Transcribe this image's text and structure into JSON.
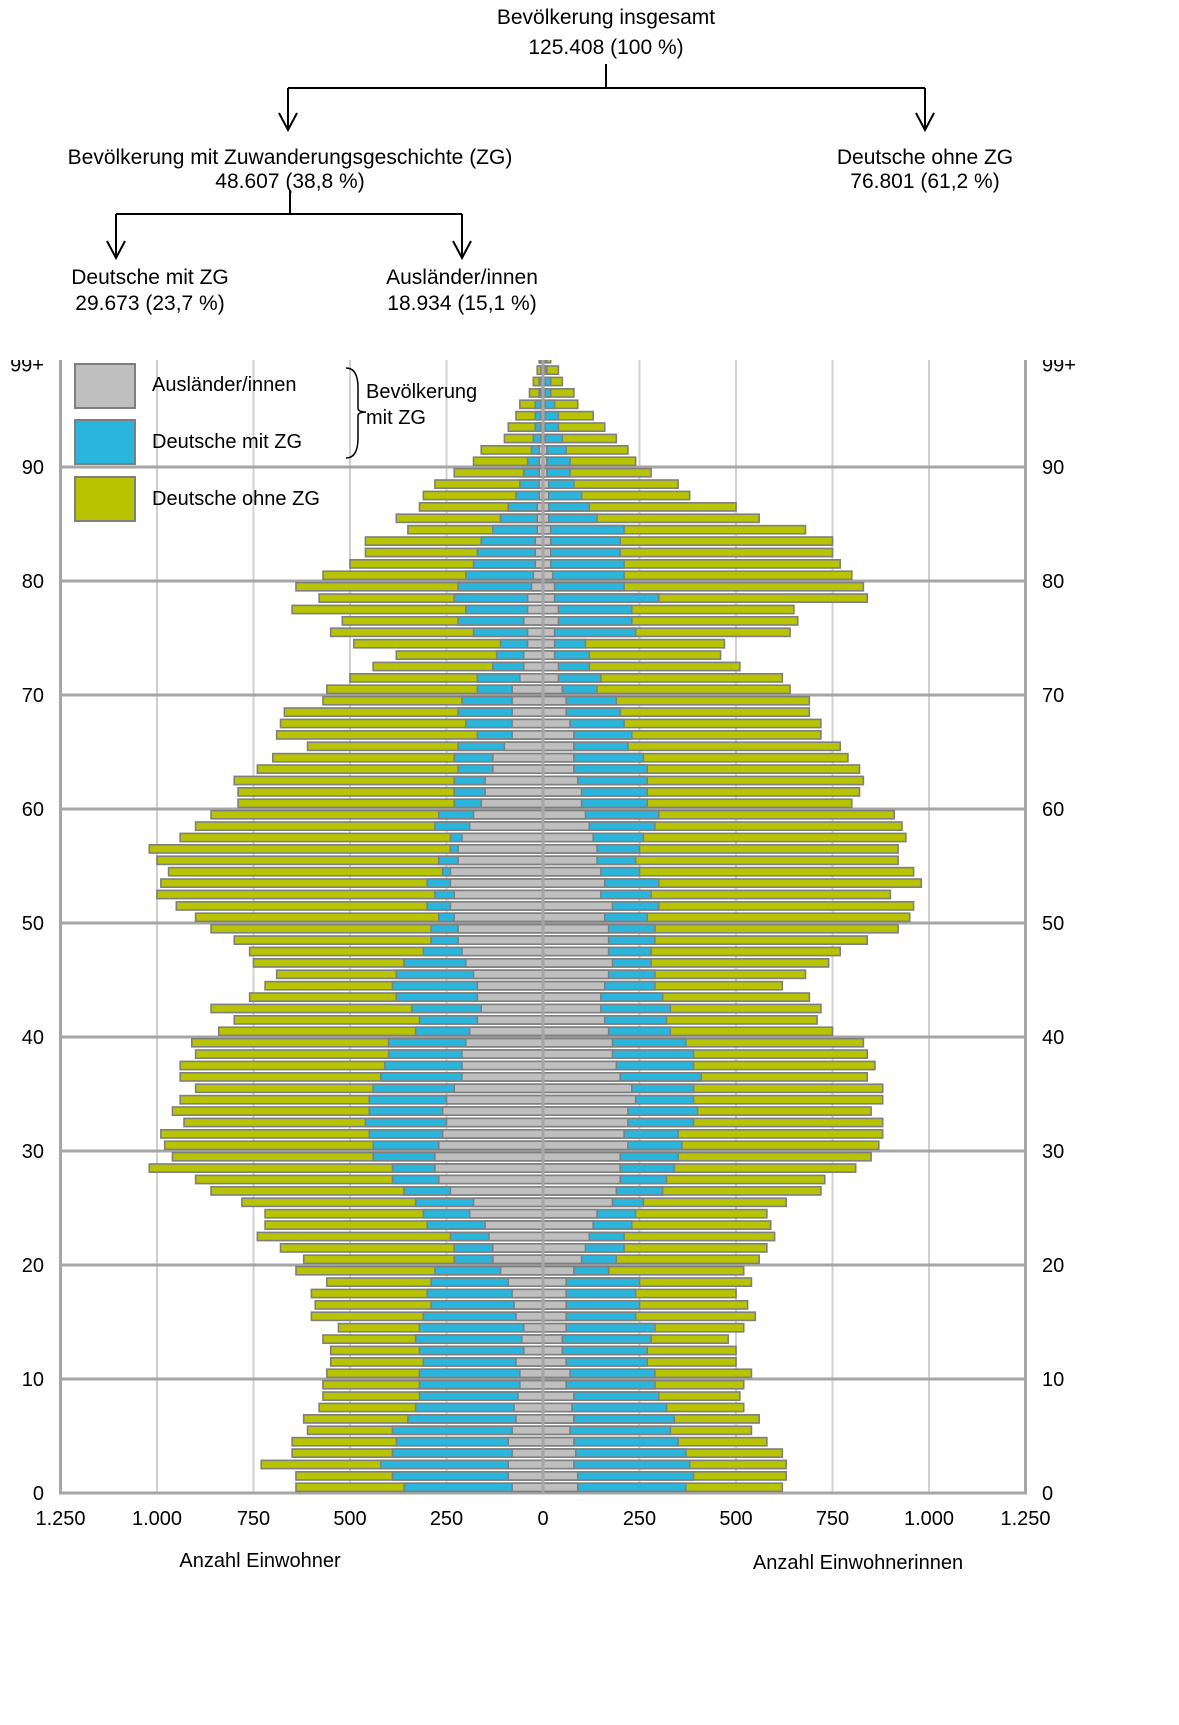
{
  "tree": {
    "total": {
      "label": "Bevölkerung insgesamt",
      "value": "125.408   (100 %)"
    },
    "with_zg": {
      "label": "Bevölkerung mit Zuwanderungsgeschichte (ZG)",
      "value": "48.607   (38,8   %)"
    },
    "without_zg": {
      "label": "Deutsche ohne ZG",
      "value": "76.801   (61,2 %)"
    },
    "german_zg": {
      "label": "Deutsche mit ZG",
      "value": "29.673   (23,7 %)"
    },
    "foreign": {
      "label": "Ausländer/innen",
      "value": "18.934   (15,1  %)"
    }
  },
  "legend": {
    "items": [
      {
        "label": "Ausländer/innen",
        "color": "#bfbfbf"
      },
      {
        "label": "Deutsche mit ZG",
        "color": "#29b5dc"
      },
      {
        "label": "Deutsche ohne ZG",
        "color": "#b8c400"
      }
    ],
    "brace_label_line1": "Bevölkerung",
    "brace_label_line2": "mit ZG"
  },
  "chart_data": {
    "type": "bar",
    "orientation": "horizontal-population-pyramid",
    "y_axis_labels": [
      "0",
      "10",
      "20",
      "30",
      "40",
      "50",
      "60",
      "70",
      "80",
      "90",
      "99+"
    ],
    "y_ticks": [
      0,
      10,
      20,
      30,
      40,
      50,
      60,
      70,
      80,
      90,
      99
    ],
    "x_tick_labels": [
      "1.250",
      "1.000",
      "750",
      "500",
      "250",
      "0",
      "250",
      "500",
      "750",
      "1.000",
      "1.250"
    ],
    "x_ticks": [
      -1250,
      -1000,
      -750,
      -500,
      -250,
      0,
      250,
      500,
      750,
      1000,
      1250
    ],
    "xlim": [
      -1250,
      1250
    ],
    "ylim": [
      0,
      100
    ],
    "xlabel_left": "Anzahl Einwohner",
    "xlabel_right": "Anzahl Einwohnerinnen",
    "series": [
      {
        "name": "Ausländer/innen",
        "side": "both"
      },
      {
        "name": "Deutsche mit ZG",
        "side": "both"
      },
      {
        "name": "Deutsche ohne ZG",
        "side": "both"
      }
    ],
    "ages": [
      0,
      1,
      2,
      3,
      4,
      5,
      6,
      7,
      8,
      9,
      10,
      11,
      12,
      13,
      14,
      15,
      16,
      17,
      18,
      19,
      20,
      21,
      22,
      23,
      24,
      25,
      26,
      27,
      28,
      29,
      30,
      31,
      32,
      33,
      34,
      35,
      36,
      37,
      38,
      39,
      40,
      41,
      42,
      43,
      44,
      45,
      46,
      47,
      48,
      49,
      50,
      51,
      52,
      53,
      54,
      55,
      56,
      57,
      58,
      59,
      60,
      61,
      62,
      63,
      64,
      65,
      66,
      67,
      68,
      69,
      70,
      71,
      72,
      73,
      74,
      75,
      76,
      77,
      78,
      79,
      80,
      81,
      82,
      83,
      84,
      85,
      86,
      87,
      88,
      89,
      90,
      91,
      92,
      93,
      94,
      95,
      96,
      97,
      98,
      99
    ],
    "male": {
      "total": [
        640,
        640,
        730,
        650,
        650,
        610,
        620,
        580,
        570,
        570,
        560,
        550,
        550,
        570,
        530,
        600,
        590,
        600,
        560,
        640,
        620,
        680,
        740,
        720,
        720,
        780,
        860,
        900,
        1020,
        960,
        980,
        990,
        930,
        960,
        940,
        900,
        940,
        940,
        900,
        910,
        840,
        800,
        860,
        760,
        720,
        690,
        750,
        760,
        800,
        860,
        900,
        950,
        1000,
        990,
        970,
        1000,
        1020,
        940,
        900,
        860,
        790,
        790,
        800,
        740,
        700,
        610,
        690,
        680,
        670,
        570,
        560,
        500,
        440,
        380,
        490,
        550,
        520,
        650,
        580,
        640,
        570,
        500,
        460,
        460,
        350,
        380,
        320,
        310,
        280,
        230,
        180,
        160,
        100,
        90,
        70,
        60,
        35,
        25,
        15,
        10
      ],
      "zg": [
        360,
        390,
        420,
        390,
        380,
        390,
        350,
        330,
        320,
        320,
        320,
        310,
        320,
        330,
        320,
        310,
        290,
        300,
        290,
        280,
        230,
        230,
        240,
        300,
        310,
        330,
        360,
        390,
        390,
        440,
        440,
        450,
        460,
        450,
        450,
        440,
        420,
        410,
        400,
        400,
        330,
        320,
        340,
        380,
        390,
        380,
        360,
        310,
        290,
        290,
        270,
        300,
        280,
        300,
        260,
        270,
        240,
        240,
        280,
        270,
        230,
        230,
        230,
        220,
        230,
        220,
        170,
        200,
        220,
        210,
        170,
        170,
        130,
        120,
        110,
        180,
        220,
        200,
        230,
        220,
        200,
        180,
        170,
        160,
        130,
        110,
        90,
        70,
        60,
        50,
        40,
        30,
        25,
        20,
        20,
        20,
        10,
        10,
        5,
        5
      ],
      "foreign": [
        80,
        90,
        90,
        80,
        90,
        80,
        70,
        75,
        65,
        60,
        60,
        70,
        50,
        55,
        50,
        70,
        75,
        80,
        90,
        110,
        130,
        130,
        140,
        150,
        190,
        180,
        240,
        270,
        280,
        280,
        270,
        260,
        250,
        260,
        250,
        230,
        210,
        210,
        210,
        200,
        190,
        170,
        160,
        170,
        170,
        180,
        200,
        210,
        220,
        220,
        230,
        240,
        230,
        240,
        240,
        220,
        220,
        210,
        190,
        180,
        160,
        150,
        150,
        130,
        130,
        100,
        80,
        80,
        80,
        80,
        80,
        60,
        50,
        50,
        40,
        40,
        50,
        40,
        40,
        30,
        25,
        20,
        20,
        20,
        15,
        15,
        15,
        10,
        10,
        10,
        10,
        10,
        5,
        5,
        5,
        5,
        5,
        5,
        5,
        5
      ]
    },
    "female": {
      "total": [
        620,
        630,
        630,
        620,
        580,
        540,
        560,
        520,
        510,
        520,
        540,
        500,
        500,
        480,
        520,
        550,
        530,
        500,
        540,
        520,
        560,
        580,
        600,
        590,
        580,
        630,
        720,
        730,
        810,
        850,
        870,
        880,
        880,
        850,
        880,
        880,
        840,
        860,
        840,
        830,
        750,
        710,
        720,
        690,
        620,
        680,
        740,
        770,
        840,
        920,
        950,
        960,
        900,
        980,
        960,
        920,
        920,
        940,
        930,
        910,
        800,
        820,
        830,
        820,
        790,
        770,
        720,
        720,
        690,
        690,
        640,
        620,
        510,
        460,
        470,
        640,
        660,
        650,
        840,
        830,
        800,
        770,
        750,
        750,
        680,
        560,
        500,
        380,
        350,
        280,
        240,
        220,
        190,
        160,
        130,
        90,
        80,
        50,
        40,
        20
      ],
      "zg": [
        370,
        390,
        380,
        370,
        350,
        330,
        340,
        320,
        300,
        290,
        290,
        270,
        270,
        280,
        290,
        240,
        250,
        240,
        250,
        170,
        190,
        210,
        210,
        230,
        240,
        260,
        310,
        320,
        340,
        350,
        360,
        350,
        390,
        400,
        390,
        390,
        410,
        390,
        390,
        370,
        330,
        320,
        330,
        310,
        290,
        290,
        280,
        280,
        290,
        290,
        270,
        300,
        280,
        300,
        250,
        240,
        250,
        260,
        290,
        300,
        270,
        270,
        270,
        270,
        260,
        220,
        230,
        210,
        200,
        190,
        140,
        150,
        120,
        120,
        110,
        240,
        230,
        230,
        300,
        210,
        210,
        210,
        200,
        200,
        210,
        140,
        120,
        100,
        80,
        70,
        70,
        60,
        50,
        40,
        40,
        30,
        20,
        20,
        10,
        10
      ],
      "foreign": [
        90,
        90,
        80,
        85,
        80,
        70,
        80,
        75,
        80,
        60,
        70,
        60,
        50,
        50,
        60,
        60,
        60,
        60,
        60,
        80,
        100,
        110,
        120,
        130,
        140,
        180,
        190,
        200,
        200,
        200,
        220,
        210,
        220,
        220,
        240,
        230,
        200,
        190,
        180,
        180,
        170,
        160,
        150,
        150,
        160,
        170,
        180,
        170,
        170,
        170,
        160,
        180,
        150,
        160,
        150,
        140,
        140,
        130,
        120,
        110,
        100,
        100,
        90,
        80,
        80,
        80,
        80,
        70,
        60,
        60,
        50,
        40,
        40,
        30,
        30,
        30,
        40,
        40,
        30,
        30,
        25,
        20,
        20,
        20,
        20,
        15,
        15,
        15,
        15,
        10,
        10,
        10,
        5,
        5,
        5,
        5,
        5,
        5,
        5,
        5
      ]
    }
  }
}
